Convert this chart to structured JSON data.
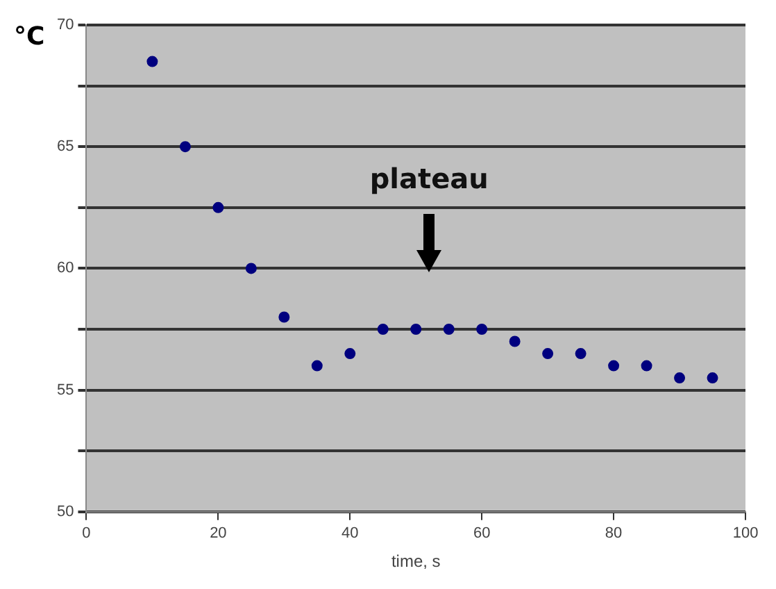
{
  "chart_data": {
    "type": "scatter",
    "ylabel": "°C",
    "xlabel": "time, s",
    "x": [
      10,
      15,
      20,
      25,
      30,
      35,
      40,
      45,
      50,
      55,
      60,
      65,
      70,
      75,
      80,
      85,
      90,
      95
    ],
    "series": [
      {
        "color": "#00007f",
        "values": [
          68.5,
          65,
          62.5,
          60,
          58,
          56,
          56.5,
          57.5,
          57.5,
          57.5,
          57.5,
          57,
          56.5,
          56.5,
          56,
          56,
          55.5,
          55.5
        ]
      }
    ],
    "xlim": [
      0,
      100
    ],
    "xticks": [
      0,
      20,
      40,
      60,
      80,
      100
    ],
    "ylim": [
      50,
      70
    ],
    "yticks": [
      50,
      {
        "value": 52.5,
        "label": null
      },
      55,
      {
        "value": 57.5,
        "label": null
      },
      60,
      {
        "value": 62.5,
        "label": null
      },
      65,
      {
        "value": 67.5,
        "label": null
      },
      70
    ],
    "grid": "y",
    "marker": "circle",
    "legend": false,
    "annotations": [
      "plateau"
    ]
  }
}
